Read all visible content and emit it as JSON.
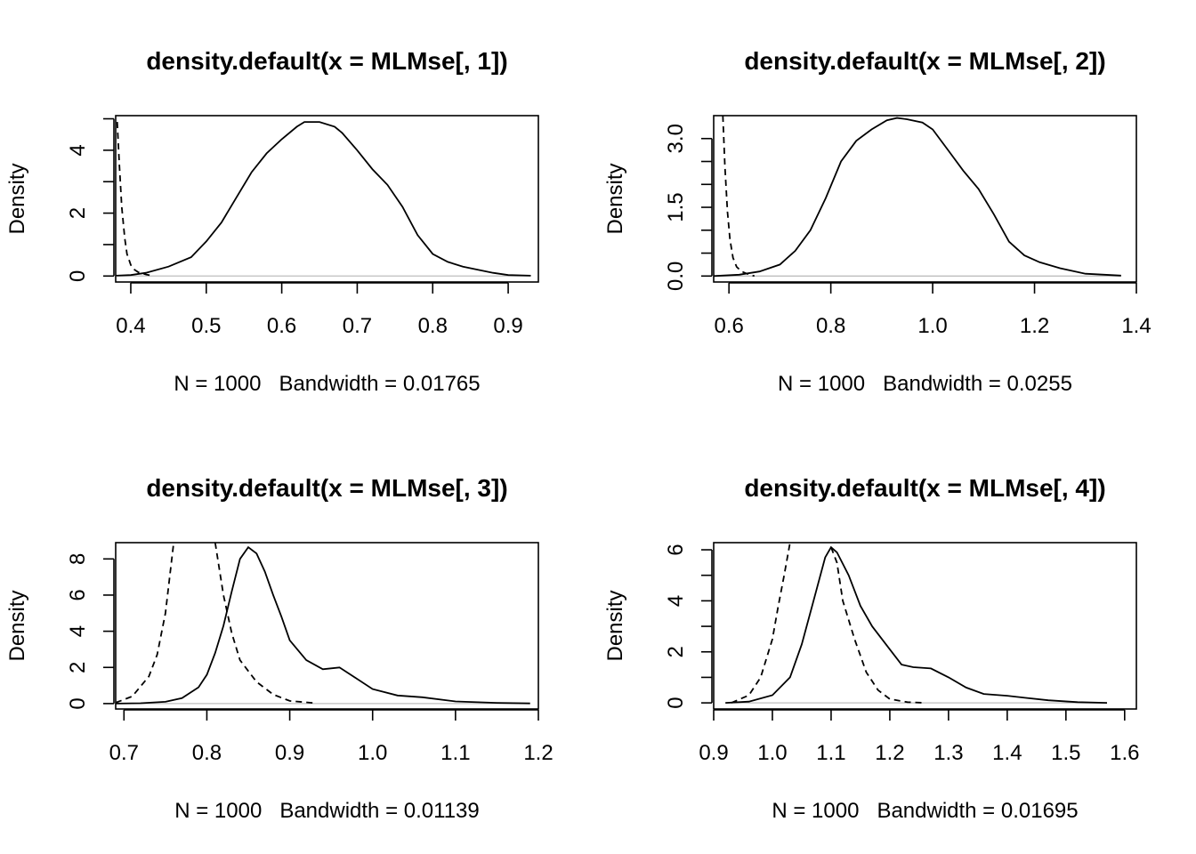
{
  "chart_data": [
    {
      "type": "line",
      "title": "density.default(x = MLMse[, 1])",
      "xlabel": "N = 1000   Bandwidth = 0.01765",
      "ylabel": "Density",
      "xlim": [
        0.38,
        0.94
      ],
      "ylim": [
        -0.19,
        5.1
      ],
      "x_ticks": [
        0.4,
        0.5,
        0.6,
        0.7,
        0.8,
        0.9
      ],
      "x_tick_labels": [
        "0.4",
        "0.5",
        "0.6",
        "0.7",
        "0.8",
        "0.9"
      ],
      "y_ticks": [
        0,
        1,
        2,
        3,
        4,
        5
      ],
      "y_tick_labels": [
        "0",
        "",
        "2",
        "",
        "4",
        ""
      ],
      "baseline": 0,
      "series": [
        {
          "style": "solid",
          "points": [
            [
              0.38,
              0.01
            ],
            [
              0.4,
              0.03
            ],
            [
              0.42,
              0.1
            ],
            [
              0.45,
              0.3
            ],
            [
              0.48,
              0.6
            ],
            [
              0.5,
              1.1
            ],
            [
              0.52,
              1.7
            ],
            [
              0.54,
              2.5
            ],
            [
              0.56,
              3.3
            ],
            [
              0.58,
              3.9
            ],
            [
              0.6,
              4.35
            ],
            [
              0.62,
              4.75
            ],
            [
              0.63,
              4.9
            ],
            [
              0.65,
              4.9
            ],
            [
              0.67,
              4.75
            ],
            [
              0.68,
              4.55
            ],
            [
              0.7,
              4.0
            ],
            [
              0.72,
              3.4
            ],
            [
              0.74,
              2.9
            ],
            [
              0.76,
              2.2
            ],
            [
              0.78,
              1.3
            ],
            [
              0.8,
              0.7
            ],
            [
              0.82,
              0.45
            ],
            [
              0.84,
              0.3
            ],
            [
              0.86,
              0.2
            ],
            [
              0.88,
              0.1
            ],
            [
              0.9,
              0.03
            ],
            [
              0.93,
              0.01
            ]
          ]
        },
        {
          "style": "dashed",
          "points": [
            [
              0.382,
              4.9
            ],
            [
              0.385,
              3.5
            ],
            [
              0.388,
              2.2
            ],
            [
              0.392,
              1.2
            ],
            [
              0.395,
              0.7
            ],
            [
              0.4,
              0.35
            ],
            [
              0.405,
              0.2
            ],
            [
              0.41,
              0.12
            ],
            [
              0.42,
              0.05
            ],
            [
              0.43,
              0.0
            ]
          ]
        }
      ]
    },
    {
      "type": "line",
      "title": "density.default(x = MLMse[, 2])",
      "xlabel": "N = 1000   Bandwidth = 0.0255",
      "ylabel": "Density",
      "xlim": [
        0.57,
        1.4
      ],
      "ylim": [
        -0.13,
        3.5
      ],
      "x_ticks": [
        0.6,
        0.8,
        1.0,
        1.2,
        1.4
      ],
      "x_tick_labels": [
        "0.6",
        "0.8",
        "1.0",
        "1.2",
        "1.4"
      ],
      "y_ticks": [
        0,
        0.5,
        1.0,
        1.5,
        2.0,
        2.5,
        3.0
      ],
      "y_tick_labels": [
        "0.0",
        "",
        "",
        "1.5",
        "",
        "",
        "3.0"
      ],
      "baseline": 0,
      "series": [
        {
          "style": "solid",
          "points": [
            [
              0.57,
              0.0
            ],
            [
              0.62,
              0.03
            ],
            [
              0.66,
              0.1
            ],
            [
              0.7,
              0.25
            ],
            [
              0.73,
              0.55
            ],
            [
              0.76,
              1.0
            ],
            [
              0.79,
              1.7
            ],
            [
              0.82,
              2.5
            ],
            [
              0.85,
              2.95
            ],
            [
              0.88,
              3.2
            ],
            [
              0.91,
              3.4
            ],
            [
              0.93,
              3.45
            ],
            [
              0.95,
              3.42
            ],
            [
              0.98,
              3.35
            ],
            [
              1.0,
              3.2
            ],
            [
              1.03,
              2.75
            ],
            [
              1.06,
              2.3
            ],
            [
              1.09,
              1.9
            ],
            [
              1.12,
              1.35
            ],
            [
              1.15,
              0.75
            ],
            [
              1.18,
              0.45
            ],
            [
              1.21,
              0.3
            ],
            [
              1.25,
              0.17
            ],
            [
              1.3,
              0.05
            ],
            [
              1.37,
              0.01
            ]
          ]
        },
        {
          "style": "dashed",
          "points": [
            [
              0.588,
              3.5
            ],
            [
              0.592,
              2.4
            ],
            [
              0.597,
              1.4
            ],
            [
              0.602,
              0.8
            ],
            [
              0.608,
              0.4
            ],
            [
              0.615,
              0.2
            ],
            [
              0.625,
              0.1
            ],
            [
              0.64,
              0.03
            ],
            [
              0.65,
              0.0
            ]
          ]
        }
      ]
    },
    {
      "type": "line",
      "title": "density.default(x = MLMse[, 3])",
      "xlabel": "N = 1000   Bandwidth = 0.01139",
      "ylabel": "Density",
      "xlim": [
        0.69,
        1.2
      ],
      "ylim": [
        -0.3,
        8.9
      ],
      "x_ticks": [
        0.7,
        0.8,
        0.9,
        1.0,
        1.1,
        1.2
      ],
      "x_tick_labels": [
        "0.7",
        "0.8",
        "0.9",
        "1.0",
        "1.1",
        "1.2"
      ],
      "y_ticks": [
        0,
        2,
        4,
        6,
        8
      ],
      "y_tick_labels": [
        "0",
        "2",
        "4",
        "6",
        "8"
      ],
      "baseline": 0,
      "series": [
        {
          "style": "solid",
          "points": [
            [
              0.69,
              0.0
            ],
            [
              0.72,
              0.02
            ],
            [
              0.75,
              0.1
            ],
            [
              0.77,
              0.3
            ],
            [
              0.79,
              0.9
            ],
            [
              0.8,
              1.6
            ],
            [
              0.81,
              2.8
            ],
            [
              0.82,
              4.3
            ],
            [
              0.83,
              6.2
            ],
            [
              0.84,
              8.0
            ],
            [
              0.85,
              8.65
            ],
            [
              0.86,
              8.3
            ],
            [
              0.87,
              7.3
            ],
            [
              0.88,
              6.0
            ],
            [
              0.89,
              4.8
            ],
            [
              0.9,
              3.5
            ],
            [
              0.92,
              2.4
            ],
            [
              0.94,
              1.9
            ],
            [
              0.96,
              2.0
            ],
            [
              0.98,
              1.4
            ],
            [
              1.0,
              0.8
            ],
            [
              1.03,
              0.45
            ],
            [
              1.06,
              0.35
            ],
            [
              1.1,
              0.12
            ],
            [
              1.15,
              0.04
            ],
            [
              1.19,
              0.01
            ]
          ]
        },
        {
          "style": "dashed",
          "points": [
            [
              0.69,
              0.05
            ],
            [
              0.71,
              0.4
            ],
            [
              0.73,
              1.5
            ],
            [
              0.74,
              2.7
            ],
            [
              0.75,
              5.0
            ],
            [
              0.76,
              8.9
            ]
          ]
        },
        {
          "style": "dashed",
          "points": [
            [
              0.81,
              8.9
            ],
            [
              0.82,
              6.0
            ],
            [
              0.83,
              3.9
            ],
            [
              0.84,
              2.4
            ],
            [
              0.86,
              1.2
            ],
            [
              0.88,
              0.5
            ],
            [
              0.9,
              0.15
            ],
            [
              0.93,
              0.03
            ]
          ]
        }
      ]
    },
    {
      "type": "line",
      "title": "density.default(x = MLMse[, 4])",
      "xlabel": "N = 1000   Bandwidth = 0.01695",
      "ylabel": "Density",
      "xlim": [
        0.9,
        1.62
      ],
      "ylim": [
        -0.24,
        6.28
      ],
      "x_ticks": [
        0.9,
        1.0,
        1.1,
        1.2,
        1.3,
        1.4,
        1.5,
        1.6
      ],
      "x_tick_labels": [
        "0.9",
        "1.0",
        "1.1",
        "1.2",
        "1.3",
        "1.4",
        "1.5",
        "1.6"
      ],
      "y_ticks": [
        0,
        1,
        2,
        3,
        4,
        5,
        6
      ],
      "y_tick_labels": [
        "0",
        "",
        "2",
        "",
        "4",
        "",
        "6"
      ],
      "baseline": 0,
      "series": [
        {
          "style": "solid",
          "points": [
            [
              0.92,
              0.0
            ],
            [
              0.96,
              0.05
            ],
            [
              1.0,
              0.3
            ],
            [
              1.03,
              1.0
            ],
            [
              1.05,
              2.3
            ],
            [
              1.07,
              4.0
            ],
            [
              1.09,
              5.7
            ],
            [
              1.1,
              6.1
            ],
            [
              1.11,
              5.9
            ],
            [
              1.13,
              5.0
            ],
            [
              1.15,
              3.8
            ],
            [
              1.17,
              3.0
            ],
            [
              1.2,
              2.1
            ],
            [
              1.22,
              1.5
            ],
            [
              1.24,
              1.4
            ],
            [
              1.27,
              1.35
            ],
            [
              1.3,
              1.0
            ],
            [
              1.33,
              0.6
            ],
            [
              1.36,
              0.35
            ],
            [
              1.4,
              0.28
            ],
            [
              1.43,
              0.2
            ],
            [
              1.47,
              0.1
            ],
            [
              1.52,
              0.03
            ],
            [
              1.57,
              0.0
            ]
          ]
        },
        {
          "style": "dashed",
          "points": [
            [
              0.93,
              0.0
            ],
            [
              0.96,
              0.3
            ],
            [
              0.98,
              1.0
            ],
            [
              1.0,
              2.5
            ],
            [
              1.01,
              3.8
            ],
            [
              1.02,
              5.0
            ],
            [
              1.03,
              6.28
            ]
          ]
        },
        {
          "style": "dashed",
          "points": [
            [
              1.1,
              6.1
            ],
            [
              1.11,
              5.5
            ],
            [
              1.12,
              4.0
            ],
            [
              1.14,
              2.5
            ],
            [
              1.16,
              1.2
            ],
            [
              1.18,
              0.5
            ],
            [
              1.2,
              0.15
            ],
            [
              1.23,
              0.03
            ],
            [
              1.26,
              0.0
            ]
          ]
        }
      ]
    }
  ]
}
